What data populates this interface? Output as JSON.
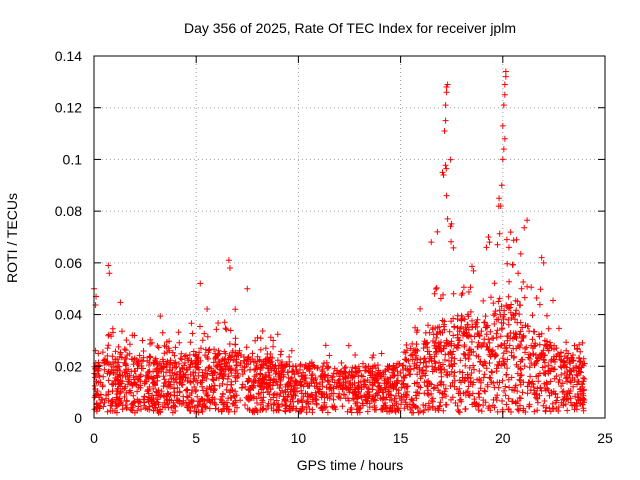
{
  "chart_data": {
    "type": "scatter",
    "title": "Day 356 of 2025, Rate Of TEC Index for receiver jplm",
    "xlabel": "GPS time / hours",
    "ylabel": "ROTI / TECUs",
    "xlim": [
      0,
      25
    ],
    "ylim": [
      0,
      0.14
    ],
    "x_ticks": [
      0,
      5,
      10,
      15,
      20,
      25
    ],
    "y_ticks": [
      0,
      0.02,
      0.04,
      0.06,
      0.08,
      0.1,
      0.12,
      0.14
    ],
    "x_tick_labels": [
      "0",
      "5",
      "10",
      "15",
      "20",
      "25"
    ],
    "y_tick_labels": [
      "0",
      "0.02",
      "0.04",
      "0.06",
      "0.08",
      "0.1",
      "0.12",
      "0.14"
    ],
    "grid": true,
    "marker": "+",
    "series_color": "#ff0000",
    "data_x_range": [
      0,
      24
    ],
    "activity_profile": [
      {
        "hour": 0,
        "typical": 0.012,
        "peak": 0.05
      },
      {
        "hour": 0.7,
        "typical": 0.014,
        "peak": 0.059
      },
      {
        "hour": 2.3,
        "typical": 0.014,
        "peak": 0.046
      },
      {
        "hour": 4,
        "typical": 0.013,
        "peak": 0.045
      },
      {
        "hour": 5.2,
        "typical": 0.016,
        "peak": 0.052
      },
      {
        "hour": 6.6,
        "typical": 0.015,
        "peak": 0.061
      },
      {
        "hour": 7.5,
        "typical": 0.014,
        "peak": 0.05
      },
      {
        "hour": 10,
        "typical": 0.012,
        "peak": 0.032
      },
      {
        "hour": 12.5,
        "typical": 0.011,
        "peak": 0.035
      },
      {
        "hour": 15,
        "typical": 0.012,
        "peak": 0.037
      },
      {
        "hour": 16.5,
        "typical": 0.02,
        "peak": 0.068
      },
      {
        "hour": 17.2,
        "typical": 0.025,
        "peak": 0.129
      },
      {
        "hour": 19.3,
        "typical": 0.022,
        "peak": 0.07
      },
      {
        "hour": 20.1,
        "typical": 0.028,
        "peak": 0.134
      },
      {
        "hour": 21.9,
        "typical": 0.018,
        "peak": 0.062
      },
      {
        "hour": 24,
        "typical": 0.013,
        "peak": 0.038
      }
    ],
    "highlight_points": [
      {
        "x": 0.0,
        "y": 0.05
      },
      {
        "x": 0.1,
        "y": 0.047
      },
      {
        "x": 0.7,
        "y": 0.059
      },
      {
        "x": 0.75,
        "y": 0.056
      },
      {
        "x": 5.2,
        "y": 0.052
      },
      {
        "x": 6.6,
        "y": 0.061
      },
      {
        "x": 6.65,
        "y": 0.058
      },
      {
        "x": 7.5,
        "y": 0.05
      },
      {
        "x": 16.5,
        "y": 0.068
      },
      {
        "x": 16.8,
        "y": 0.072
      },
      {
        "x": 17.05,
        "y": 0.095
      },
      {
        "x": 17.1,
        "y": 0.094
      },
      {
        "x": 17.15,
        "y": 0.111
      },
      {
        "x": 17.2,
        "y": 0.115
      },
      {
        "x": 17.2,
        "y": 0.121
      },
      {
        "x": 17.25,
        "y": 0.126
      },
      {
        "x": 17.25,
        "y": 0.128
      },
      {
        "x": 17.3,
        "y": 0.129
      },
      {
        "x": 17.25,
        "y": 0.086
      },
      {
        "x": 17.3,
        "y": 0.077
      },
      {
        "x": 19.2,
        "y": 0.066
      },
      {
        "x": 19.3,
        "y": 0.07
      },
      {
        "x": 19.35,
        "y": 0.068
      },
      {
        "x": 19.9,
        "y": 0.082
      },
      {
        "x": 19.95,
        "y": 0.09
      },
      {
        "x": 20.0,
        "y": 0.1
      },
      {
        "x": 20.05,
        "y": 0.104
      },
      {
        "x": 20.1,
        "y": 0.108
      },
      {
        "x": 20.0,
        "y": 0.113
      },
      {
        "x": 20.05,
        "y": 0.121
      },
      {
        "x": 20.1,
        "y": 0.125
      },
      {
        "x": 20.1,
        "y": 0.129
      },
      {
        "x": 20.15,
        "y": 0.132
      },
      {
        "x": 20.15,
        "y": 0.134
      },
      {
        "x": 20.2,
        "y": 0.069
      },
      {
        "x": 20.3,
        "y": 0.066
      },
      {
        "x": 21.9,
        "y": 0.062
      },
      {
        "x": 22.0,
        "y": 0.06
      }
    ]
  }
}
